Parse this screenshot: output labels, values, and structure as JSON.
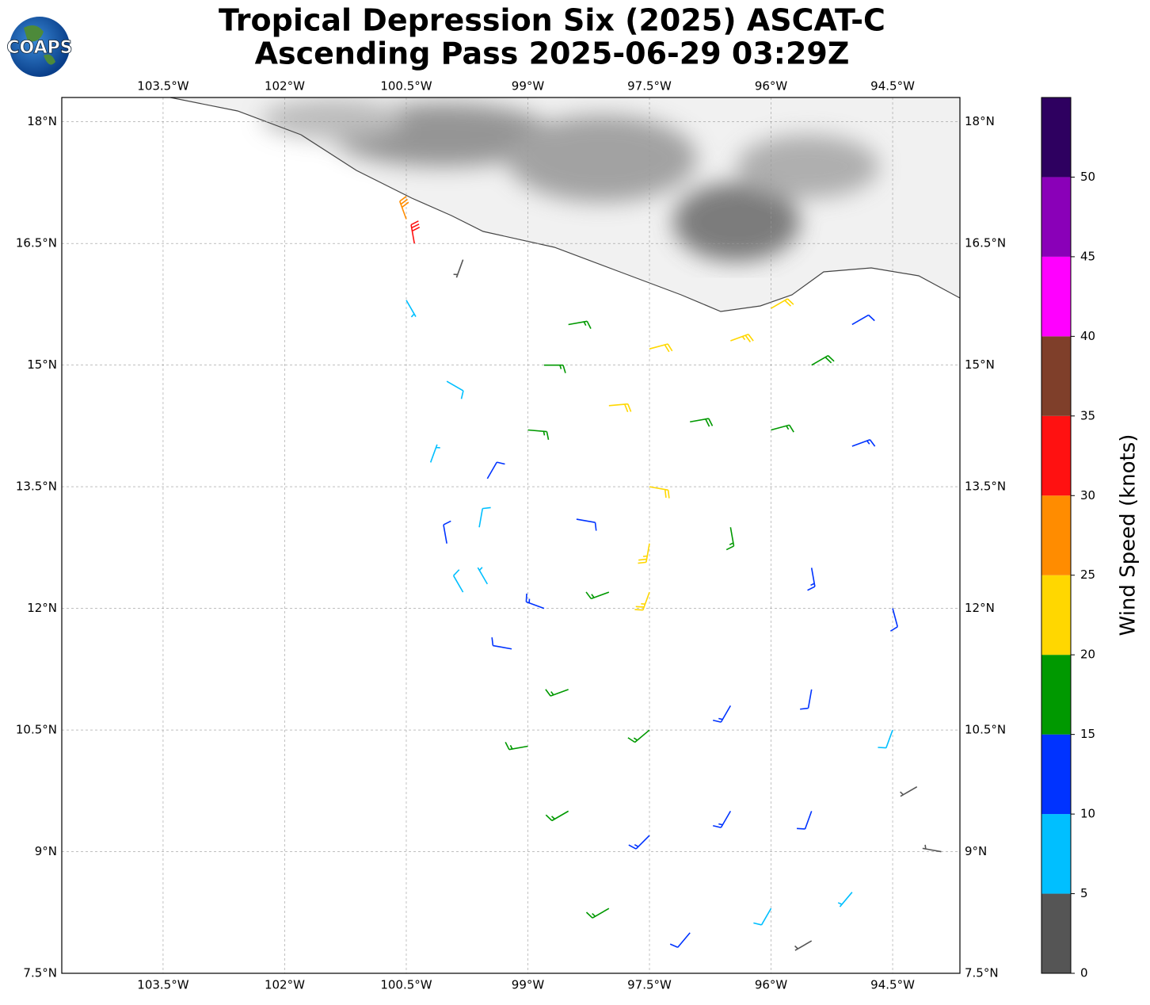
{
  "chart_data": {
    "type": "wind_barbs",
    "logo_text": "COAPS",
    "title": "Tropical Depression Six (2025) ASCAT-C",
    "subtitle": "Ascending Pass 2025-06-29 03:29Z",
    "xlim": [
      -104.75,
      -93.67
    ],
    "ylim": [
      7.5,
      18.3
    ],
    "xticks": [
      {
        "value": -103.5,
        "label": "103.5°W"
      },
      {
        "value": -102,
        "label": "102°W"
      },
      {
        "value": -100.5,
        "label": "100.5°W"
      },
      {
        "value": -99,
        "label": "99°W"
      },
      {
        "value": -97.5,
        "label": "97.5°W"
      },
      {
        "value": -96,
        "label": "96°W"
      },
      {
        "value": -94.5,
        "label": "94.5°W"
      }
    ],
    "yticks": [
      {
        "value": 18,
        "label": "18°N"
      },
      {
        "value": 16.5,
        "label": "16.5°N"
      },
      {
        "value": 15,
        "label": "15°N"
      },
      {
        "value": 13.5,
        "label": "13.5°N"
      },
      {
        "value": 12,
        "label": "12°N"
      },
      {
        "value": 10.5,
        "label": "10.5°N"
      },
      {
        "value": 9,
        "label": "9°N"
      },
      {
        "value": 7.5,
        "label": "7.5°N"
      }
    ],
    "grid": true,
    "colorbar": {
      "label": "Wind Speed (knots)",
      "lim": [
        0,
        55
      ],
      "ticks": [
        0,
        5,
        10,
        15,
        20,
        25,
        30,
        35,
        40,
        45,
        50
      ],
      "colors": [
        "#555555",
        "#00bfff",
        "#0033ff",
        "#009900",
        "#ffd700",
        "#ff8c00",
        "#ff1111",
        "#7f3f2a",
        "#ff00ff",
        "#8a00b8",
        "#2e0060"
      ]
    },
    "barbs": [
      {
        "lon": -98.5,
        "lat": 15.5,
        "speed": 17,
        "dir": 80
      },
      {
        "lon": -97.5,
        "lat": 15.2,
        "speed": 22,
        "dir": 75
      },
      {
        "lon": -96.5,
        "lat": 15.3,
        "speed": 23,
        "dir": 70
      },
      {
        "lon": -95.5,
        "lat": 15.0,
        "speed": 18,
        "dir": 60
      },
      {
        "lon": -98,
        "lat": 14.5,
        "speed": 21,
        "dir": 85
      },
      {
        "lon": -97,
        "lat": 14.3,
        "speed": 19,
        "dir": 80
      },
      {
        "lon": -96,
        "lat": 14.2,
        "speed": 16,
        "dir": 75
      },
      {
        "lon": -95,
        "lat": 14.0,
        "speed": 13,
        "dir": 70
      },
      {
        "lon": -99,
        "lat": 14.2,
        "speed": 16,
        "dir": 95
      },
      {
        "lon": -100,
        "lat": 14.8,
        "speed": 9,
        "dir": 120
      },
      {
        "lon": -100.5,
        "lat": 15.8,
        "speed": 6,
        "dir": 150
      },
      {
        "lon": -99.8,
        "lat": 16.3,
        "speed": 3,
        "dir": 200
      },
      {
        "lon": -100.5,
        "lat": 16.8,
        "speed": 28,
        "dir": 340
      },
      {
        "lon": -100.4,
        "lat": 16.5,
        "speed": 32,
        "dir": 350
      },
      {
        "lon": -99.5,
        "lat": 13.6,
        "speed": 11,
        "dir": 30
      },
      {
        "lon": -99.6,
        "lat": 13.0,
        "speed": 8,
        "dir": 10
      },
      {
        "lon": -99.5,
        "lat": 12.3,
        "speed": 7,
        "dir": 330
      },
      {
        "lon": -98.8,
        "lat": 12.0,
        "speed": 13,
        "dir": 290
      },
      {
        "lon": -98,
        "lat": 12.2,
        "speed": 16,
        "dir": 250
      },
      {
        "lon": -97.5,
        "lat": 12.2,
        "speed": 23,
        "dir": 200
      },
      {
        "lon": -97.5,
        "lat": 12.8,
        "speed": 24,
        "dir": 190
      },
      {
        "lon": -97.5,
        "lat": 13.5,
        "speed": 22,
        "dir": 100
      },
      {
        "lon": -96.5,
        "lat": 13.0,
        "speed": 17,
        "dir": 170
      },
      {
        "lon": -95.5,
        "lat": 12.5,
        "speed": 13,
        "dir": 170
      },
      {
        "lon": -94.5,
        "lat": 12.0,
        "speed": 12,
        "dir": 165
      },
      {
        "lon": -99.2,
        "lat": 11.5,
        "speed": 12,
        "dir": 280
      },
      {
        "lon": -98.5,
        "lat": 11.0,
        "speed": 15,
        "dir": 250
      },
      {
        "lon": -97.5,
        "lat": 10.5,
        "speed": 16,
        "dir": 230
      },
      {
        "lon": -96.5,
        "lat": 10.8,
        "speed": 14,
        "dir": 210
      },
      {
        "lon": -95.5,
        "lat": 11,
        "speed": 12,
        "dir": 190
      },
      {
        "lon": -99,
        "lat": 10.3,
        "speed": 17,
        "dir": 260
      },
      {
        "lon": -98.5,
        "lat": 9.5,
        "speed": 16,
        "dir": 240
      },
      {
        "lon": -97.5,
        "lat": 9.2,
        "speed": 14,
        "dir": 225
      },
      {
        "lon": -96.5,
        "lat": 9.5,
        "speed": 13,
        "dir": 210
      },
      {
        "lon": -95.5,
        "lat": 9.5,
        "speed": 11,
        "dir": 200
      },
      {
        "lon": -94.5,
        "lat": 10.5,
        "speed": 8,
        "dir": 200
      },
      {
        "lon": -94.2,
        "lat": 9.8,
        "speed": 4,
        "dir": 240
      },
      {
        "lon": -93.9,
        "lat": 9.0,
        "speed": 3,
        "dir": 280
      },
      {
        "lon": -98,
        "lat": 8.3,
        "speed": 16,
        "dir": 240
      },
      {
        "lon": -97,
        "lat": 8.0,
        "speed": 12,
        "dir": 220
      },
      {
        "lon": -96,
        "lat": 8.3,
        "speed": 8,
        "dir": 210
      },
      {
        "lon": -95,
        "lat": 8.5,
        "speed": 7,
        "dir": 220
      },
      {
        "lon": -95.5,
        "lat": 7.9,
        "speed": 3,
        "dir": 240
      },
      {
        "lon": -100,
        "lat": 12.8,
        "speed": 12,
        "dir": 350
      },
      {
        "lon": -99.8,
        "lat": 12.2,
        "speed": 9,
        "dir": 330
      },
      {
        "lon": -98.4,
        "lat": 13.1,
        "speed": 10,
        "dir": 100
      },
      {
        "lon": -100.2,
        "lat": 13.8,
        "speed": 7,
        "dir": 20
      },
      {
        "lon": -96.0,
        "lat": 15.7,
        "speed": 20,
        "dir": 60
      },
      {
        "lon": -95.0,
        "lat": 15.5,
        "speed": 12,
        "dir": 60
      },
      {
        "lon": -98.8,
        "lat": 15.0,
        "speed": 15,
        "dir": 90
      }
    ]
  }
}
